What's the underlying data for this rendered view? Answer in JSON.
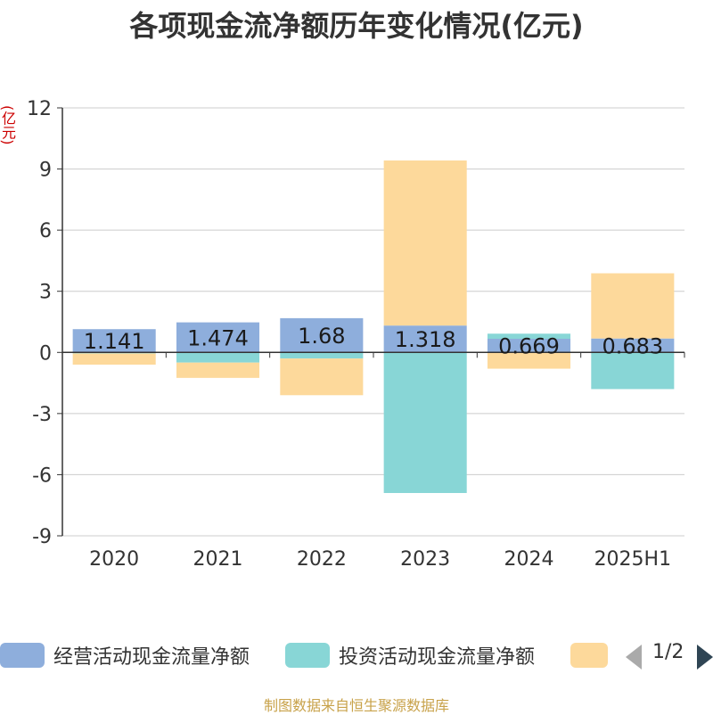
{
  "chart_data": {
    "type": "bar",
    "stacked": true,
    "title": "各项现金流净额历年变化情况(亿元)",
    "ylabel": "(亿元)",
    "categories": [
      "2020",
      "2021",
      "2022",
      "2023",
      "2024",
      "2025H1"
    ],
    "y_ticks": [
      "12",
      "9",
      "6",
      "3",
      "0",
      "-3",
      "-6",
      "-9"
    ],
    "ylim": [
      -9,
      12
    ],
    "grid": true,
    "legend_position": "bottom",
    "series": [
      {
        "name": "经营活动现金流量净额",
        "color": "#8eaedc",
        "values": [
          1.141,
          1.474,
          1.68,
          1.318,
          0.669,
          0.683
        ],
        "labels": [
          "1.141",
          "1.474",
          "1.68",
          "1.318",
          "0.669",
          "0.683"
        ]
      },
      {
        "name": "投资活动现金流量净额",
        "color": "#88d6d6",
        "values": [
          -0.05,
          -0.5,
          -0.3,
          -6.9,
          0.25,
          -1.8
        ]
      },
      {
        "name": "",
        "color": "#fdd99b",
        "values": [
          -0.55,
          -0.75,
          -1.8,
          8.1,
          -0.8,
          3.2
        ]
      }
    ]
  },
  "legend": {
    "page": "1/2"
  },
  "source": "制图数据来自恒生聚源数据库"
}
